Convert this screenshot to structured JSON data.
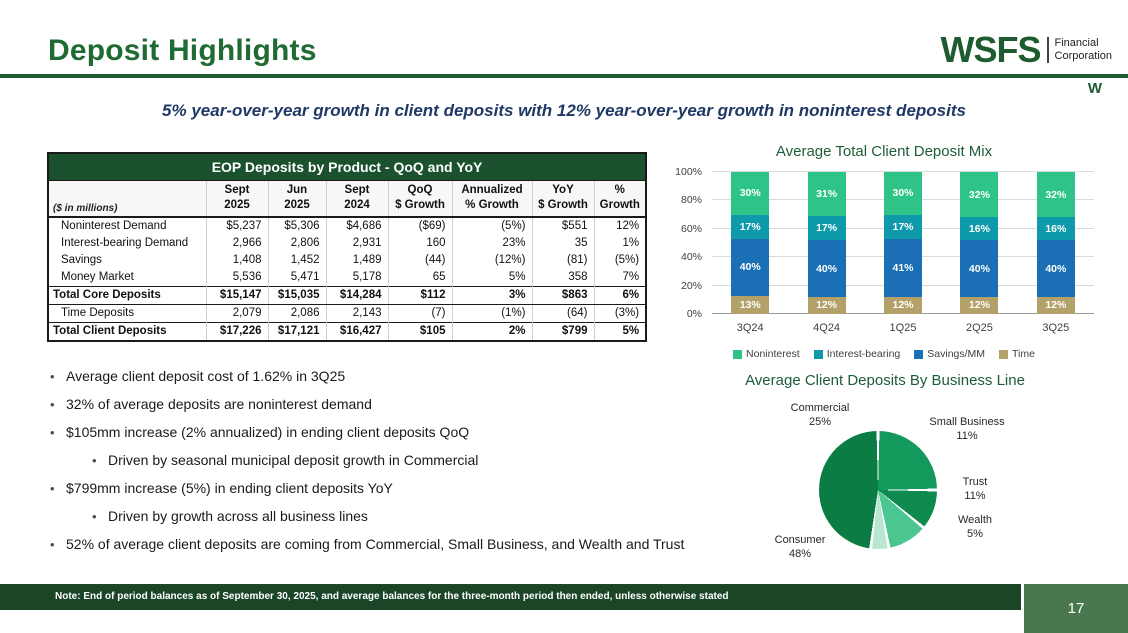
{
  "slide": {
    "title": "Deposit Highlights",
    "subtitle": "5% year-over-year growth in client deposits with 12% year-over-year growth in noninterest deposits",
    "page_number": "17",
    "footer_note": "Note: End of period balances as of September 30, 2025, and average balances for the three-month period then ended, unless otherwise stated"
  },
  "logo": {
    "name": "WSFS",
    "sub1": "Financial",
    "sub2": "Corporation",
    "mark": "W"
  },
  "theme": {
    "primary_green": "#1d5c30",
    "table_header_green": "#1c5130",
    "footer_green": "#1b4527",
    "page_box_green": "#49784f",
    "navy": "#1f3864"
  },
  "table": {
    "title": "EOP Deposits by Product - QoQ and YoY",
    "unit_label": "($ in millions)",
    "col_headers": [
      [
        "Sept",
        "2025"
      ],
      [
        "Jun",
        "2025"
      ],
      [
        "Sept",
        "2024"
      ],
      [
        "QoQ",
        "$ Growth"
      ],
      [
        "Annualized",
        "% Growth"
      ],
      [
        "YoY",
        "$ Growth"
      ],
      [
        "%",
        "Growth"
      ]
    ],
    "rows": [
      {
        "label": "Noninterest Demand",
        "bold": false,
        "values": [
          "$5,237",
          "$5,306",
          "$4,686",
          "($69)",
          "(5%)",
          "$551",
          "12%"
        ]
      },
      {
        "label": "Interest-bearing Demand",
        "bold": false,
        "values": [
          "2,966",
          "2,806",
          "2,931",
          "160",
          "23%",
          "35",
          "1%"
        ]
      },
      {
        "label": "Savings",
        "bold": false,
        "values": [
          "1,408",
          "1,452",
          "1,489",
          "(44)",
          "(12%)",
          "(81)",
          "(5%)"
        ]
      },
      {
        "label": "Money Market",
        "bold": false,
        "values": [
          "5,536",
          "5,471",
          "5,178",
          "65",
          "5%",
          "358",
          "7%"
        ]
      },
      {
        "label": "Total Core Deposits",
        "bold": true,
        "values": [
          "$15,147",
          "$15,035",
          "$14,284",
          "$112",
          "3%",
          "$863",
          "6%"
        ]
      },
      {
        "label": "Time Deposits",
        "bold": false,
        "values": [
          "2,079",
          "2,086",
          "2,143",
          "(7)",
          "(1%)",
          "(64)",
          "(3%)"
        ]
      },
      {
        "label": "Total Client Deposits",
        "bold": true,
        "values": [
          "$17,226",
          "$17,121",
          "$16,427",
          "$105",
          "2%",
          "$799",
          "5%"
        ]
      }
    ]
  },
  "bullets": [
    {
      "level": 1,
      "text": "Average client deposit cost of 1.62% in 3Q25"
    },
    {
      "level": 1,
      "text": "32% of average deposits are noninterest demand"
    },
    {
      "level": 1,
      "text": "$105mm increase (2% annualized) in ending client deposits QoQ"
    },
    {
      "level": 2,
      "text": "Driven by seasonal municipal deposit growth in Commercial"
    },
    {
      "level": 1,
      "text": "$799mm increase (5%) in ending client deposits YoY"
    },
    {
      "level": 2,
      "text": "Driven by growth across all business lines"
    },
    {
      "level": 1,
      "text": "52% of average client deposits are coming from Commercial, Small Business, and Wealth and Trust"
    }
  ],
  "chart_data": [
    {
      "type": "bar",
      "subtype": "stacked-100pct",
      "title": "Average Total Client Deposit Mix",
      "categories": [
        "3Q24",
        "4Q24",
        "1Q25",
        "2Q25",
        "3Q25"
      ],
      "series": [
        {
          "name": "Time",
          "color": "#b3a169",
          "values": [
            13,
            12,
            12,
            12,
            12
          ]
        },
        {
          "name": "Savings/MM",
          "color": "#1a6fb5",
          "values": [
            40,
            40,
            41,
            40,
            40
          ]
        },
        {
          "name": "Interest-bearing",
          "color": "#0f9aac",
          "values": [
            17,
            17,
            17,
            16,
            16
          ]
        },
        {
          "name": "Noninterest",
          "color": "#2ec487",
          "values": [
            30,
            31,
            30,
            32,
            32
          ]
        }
      ],
      "stack_order": "bottom-to-top",
      "legend_order": [
        "Noninterest",
        "Interest-bearing",
        "Savings/MM",
        "Time"
      ],
      "legend_position": "bottom",
      "grid": true,
      "ylim": [
        0,
        100
      ],
      "yticks": [
        "0%",
        "20%",
        "40%",
        "60%",
        "80%",
        "100%"
      ]
    },
    {
      "type": "pie",
      "title": "Average Client Deposits By Business Line",
      "slices": [
        {
          "label": "Commercial",
          "value": 25,
          "color": "#14995c"
        },
        {
          "label": "Small Business",
          "value": 11,
          "color": "#0f8a4f"
        },
        {
          "label": "Trust",
          "value": 11,
          "color": "#4cc690"
        },
        {
          "label": "Wealth",
          "value": 5,
          "color": "#b9e6d0"
        },
        {
          "label": "Consumer",
          "value": 48,
          "color": "#0a7c44"
        }
      ]
    }
  ]
}
